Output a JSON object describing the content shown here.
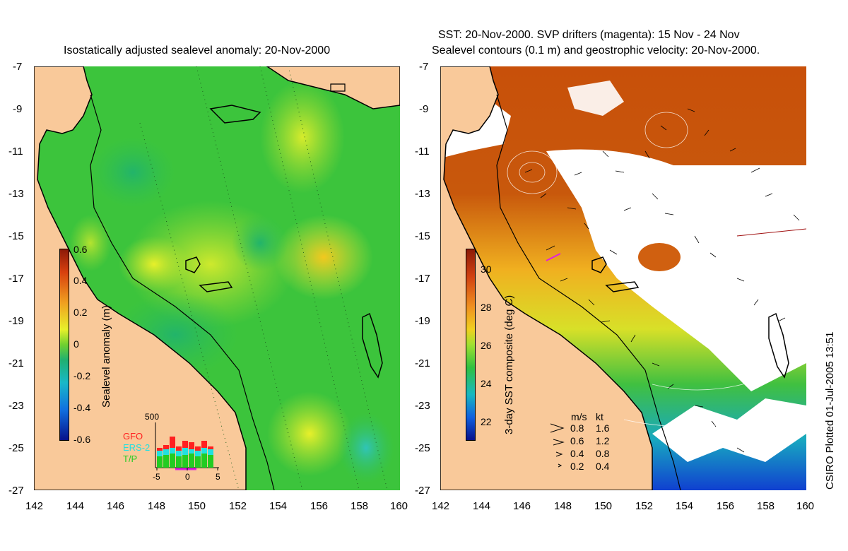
{
  "left_panel": {
    "title": "Isostatically adjusted sealevel anomaly: 20-Nov-2000",
    "colorbar": {
      "label": "Sealevel anomaly (m)",
      "ticks": [
        "0.6",
        "0.4",
        "0.2",
        "0",
        "-0.2",
        "-0.4",
        "-0.6"
      ],
      "range": [
        -0.6,
        0.6
      ]
    },
    "satellite_inset": {
      "ymax_label": "500",
      "legend": [
        {
          "name": "GFO",
          "color": "#ff2020"
        },
        {
          "name": "ERS-2",
          "color": "#22e0e0"
        },
        {
          "name": "T/P",
          "color": "#22cc22"
        }
      ],
      "x_ticks": [
        "-5",
        "0",
        "5"
      ]
    }
  },
  "right_panel": {
    "title_line1": "SST: 20-Nov-2000. SVP drifters (magenta): 15 Nov - 24 Nov",
    "title_line2": "Sealevel contours (0.1 m) and geostrophic velocity: 20-Nov-2000.",
    "colorbar": {
      "label": "3-day SST composite (deg C)",
      "ticks": [
        "30",
        "28",
        "26",
        "24",
        "22"
      ],
      "range": [
        21,
        31
      ]
    },
    "velocity_legend": {
      "headers": [
        "m/s",
        "kt"
      ],
      "rows": [
        {
          "ms": "0.8",
          "kt": "1.6"
        },
        {
          "ms": "0.6",
          "kt": "1.2"
        },
        {
          "ms": "0.4",
          "kt": "0.8"
        },
        {
          "ms": "0.2",
          "kt": "0.4"
        }
      ]
    }
  },
  "axes": {
    "x_ticks": [
      "142",
      "144",
      "146",
      "148",
      "150",
      "152",
      "154",
      "156",
      "158",
      "160"
    ],
    "y_ticks": [
      "-7",
      "-9",
      "-11",
      "-13",
      "-15",
      "-17",
      "-19",
      "-21",
      "-23",
      "-25",
      "-27"
    ],
    "lon_range": [
      142,
      160
    ],
    "lat_range": [
      -27,
      -7
    ]
  },
  "credit": "CSIRO Plotted 01-Jul-2005 13:51",
  "colors": {
    "land": "#f9c99a",
    "coast": "#000000",
    "sla_background": "#3cc43c",
    "sst_warm": "#c8500a",
    "sst_cloud": "#ffffff"
  }
}
